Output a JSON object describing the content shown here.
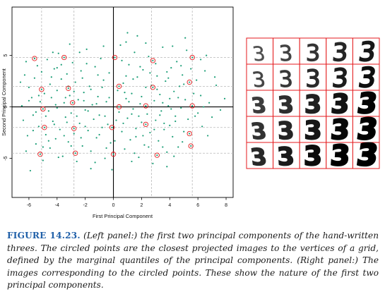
{
  "figure": {
    "label": "FIGURE 14.23.",
    "caption": "(Left panel:) the first two principal components of the hand-written threes. The circled points are the closest projected images to the vertices of a grid, defined by the marginal quantiles of the principal components. (Right panel:) The images corresponding to the circled points. These show the nature of the first two principal components."
  },
  "right_panel": {
    "digit": "3",
    "rows": 5,
    "cols": 5,
    "border_color": "#e41a1c"
  },
  "chart_data": {
    "type": "scatter",
    "xlabel": "First Principal Component",
    "ylabel": "Second Principal Component",
    "xlim": [
      -7.2,
      8.5
    ],
    "ylim": [
      -8.8,
      9.7
    ],
    "xticks": [
      -6,
      -4,
      -2,
      0,
      2,
      4,
      6,
      8
    ],
    "yticks": [
      -5,
      0,
      5
    ],
    "point_color": "#1b9e77",
    "circle_color": "#e41a1c",
    "grid_x": [
      -5.1,
      -2.8,
      0.0,
      2.7,
      5.6
    ],
    "grid_y": [
      -4.5,
      -2.0,
      0.0,
      2.0,
      4.8
    ],
    "circled_points": [
      {
        "x": -5.6,
        "y": 4.7
      },
      {
        "x": -3.5,
        "y": 4.8
      },
      {
        "x": 0.1,
        "y": 4.8
      },
      {
        "x": 2.8,
        "y": 4.5
      },
      {
        "x": 5.6,
        "y": 4.8
      },
      {
        "x": -5.1,
        "y": 1.7
      },
      {
        "x": -3.2,
        "y": 1.8
      },
      {
        "x": 0.4,
        "y": 2.0
      },
      {
        "x": 2.8,
        "y": 1.9
      },
      {
        "x": 5.4,
        "y": 2.4
      },
      {
        "x": -5.0,
        "y": -0.2
      },
      {
        "x": -2.9,
        "y": 0.4
      },
      {
        "x": 0.4,
        "y": 0.0
      },
      {
        "x": 2.3,
        "y": 0.1
      },
      {
        "x": 5.6,
        "y": 0.1
      },
      {
        "x": -4.9,
        "y": -2.0
      },
      {
        "x": -2.8,
        "y": -2.1
      },
      {
        "x": -0.1,
        "y": -2.0
      },
      {
        "x": 2.3,
        "y": -1.7
      },
      {
        "x": 5.4,
        "y": -2.6
      },
      {
        "x": -5.2,
        "y": -4.6
      },
      {
        "x": -2.7,
        "y": -4.5
      },
      {
        "x": 0.0,
        "y": -4.6
      },
      {
        "x": 3.1,
        "y": -4.7
      },
      {
        "x": 5.5,
        "y": -3.8
      }
    ],
    "points": [
      {
        "x": -6.5,
        "y": 0.1
      },
      {
        "x": -6.4,
        "y": -1.3
      },
      {
        "x": -6.0,
        "y": 1.9
      },
      {
        "x": -6.1,
        "y": -2.8
      },
      {
        "x": -6.3,
        "y": 3.1
      },
      {
        "x": -5.9,
        "y": -6.2
      },
      {
        "x": -5.8,
        "y": 0.9
      },
      {
        "x": -5.7,
        "y": -0.8
      },
      {
        "x": -5.6,
        "y": 2.8
      },
      {
        "x": -5.5,
        "y": -3.6
      },
      {
        "x": -5.4,
        "y": 4.0
      },
      {
        "x": -5.3,
        "y": -1.9
      },
      {
        "x": -5.2,
        "y": 0.5
      },
      {
        "x": -5.1,
        "y": 3.4
      },
      {
        "x": -5.0,
        "y": -5.2
      },
      {
        "x": -4.9,
        "y": 1.3
      },
      {
        "x": -4.8,
        "y": -2.7
      },
      {
        "x": -4.7,
        "y": 4.6
      },
      {
        "x": -4.6,
        "y": -0.4
      },
      {
        "x": -4.5,
        "y": 2.2
      },
      {
        "x": -4.5,
        "y": -4.0
      },
      {
        "x": -4.4,
        "y": 0.9
      },
      {
        "x": -4.3,
        "y": -1.4
      },
      {
        "x": -4.2,
        "y": 3.7
      },
      {
        "x": -4.1,
        "y": -3.1
      },
      {
        "x": -4.0,
        "y": 1.6
      },
      {
        "x": -4.0,
        "y": -0.1
      },
      {
        "x": -3.9,
        "y": 5.2
      },
      {
        "x": -3.8,
        "y": -2.2
      },
      {
        "x": -3.7,
        "y": 2.7
      },
      {
        "x": -3.6,
        "y": -4.8
      },
      {
        "x": -3.5,
        "y": 0.4
      },
      {
        "x": -3.4,
        "y": -1.0
      },
      {
        "x": -3.3,
        "y": 3.2
      },
      {
        "x": -3.2,
        "y": -3.4
      },
      {
        "x": -3.1,
        "y": 1.1
      },
      {
        "x": -3.0,
        "y": -0.6
      },
      {
        "x": -2.9,
        "y": 4.3
      },
      {
        "x": -2.8,
        "y": -2.6
      },
      {
        "x": -2.7,
        "y": 2.4
      },
      {
        "x": -2.6,
        "y": -5.3
      },
      {
        "x": -2.5,
        "y": 0.7
      },
      {
        "x": -2.4,
        "y": -1.6
      },
      {
        "x": -2.3,
        "y": 3.5
      },
      {
        "x": -2.2,
        "y": -3.8
      },
      {
        "x": -2.1,
        "y": 1.4
      },
      {
        "x": -2.0,
        "y": -0.3
      },
      {
        "x": -1.9,
        "y": 5.6
      },
      {
        "x": -1.8,
        "y": -2.3
      },
      {
        "x": -1.7,
        "y": 2.0
      },
      {
        "x": -1.6,
        "y": -4.3
      },
      {
        "x": -1.5,
        "y": 0.2
      },
      {
        "x": -1.4,
        "y": -1.2
      },
      {
        "x": -1.3,
        "y": 3.9
      },
      {
        "x": -1.2,
        "y": -3.0
      },
      {
        "x": -1.1,
        "y": 1.0
      },
      {
        "x": -1.0,
        "y": -0.8
      },
      {
        "x": -0.9,
        "y": 4.7
      },
      {
        "x": -0.8,
        "y": -2.0
      },
      {
        "x": -0.7,
        "y": 2.6
      },
      {
        "x": -0.6,
        "y": -5.0
      },
      {
        "x": -0.5,
        "y": 0.5
      },
      {
        "x": -0.4,
        "y": -1.7
      },
      {
        "x": -0.3,
        "y": 3.3
      },
      {
        "x": -0.2,
        "y": -3.5
      },
      {
        "x": 0.3,
        "y": 1.6
      },
      {
        "x": 0.4,
        "y": -0.5
      },
      {
        "x": 0.5,
        "y": 6.0
      },
      {
        "x": 0.6,
        "y": -2.4
      },
      {
        "x": 0.7,
        "y": 2.3
      },
      {
        "x": 0.8,
        "y": -4.1
      },
      {
        "x": 0.9,
        "y": 0.8
      },
      {
        "x": 1.0,
        "y": -1.1
      },
      {
        "x": 1.1,
        "y": 4.1
      },
      {
        "x": 1.2,
        "y": -3.2
      },
      {
        "x": 1.3,
        "y": 1.3
      },
      {
        "x": 1.4,
        "y": -0.2
      },
      {
        "x": 1.5,
        "y": 5.3
      },
      {
        "x": 1.6,
        "y": -2.1
      },
      {
        "x": 1.7,
        "y": 2.9
      },
      {
        "x": 1.8,
        "y": -4.9
      },
      {
        "x": 1.9,
        "y": 0.3
      },
      {
        "x": 2.0,
        "y": -1.5
      },
      {
        "x": 2.1,
        "y": 3.6
      },
      {
        "x": 2.2,
        "y": -3.7
      },
      {
        "x": 2.3,
        "y": 1.9
      },
      {
        "x": 2.4,
        "y": -0.7
      },
      {
        "x": 2.5,
        "y": 4.9
      },
      {
        "x": 2.6,
        "y": -2.5
      },
      {
        "x": 2.7,
        "y": 2.1
      },
      {
        "x": 2.8,
        "y": -5.5
      },
      {
        "x": 2.9,
        "y": 0.6
      },
      {
        "x": 3.0,
        "y": -1.3
      },
      {
        "x": 3.1,
        "y": 3.0
      },
      {
        "x": 3.2,
        "y": -3.3
      },
      {
        "x": 3.3,
        "y": 1.2
      },
      {
        "x": 3.4,
        "y": -0.4
      },
      {
        "x": 3.5,
        "y": 5.8
      },
      {
        "x": 3.6,
        "y": -2.2
      },
      {
        "x": 3.7,
        "y": 2.5
      },
      {
        "x": 3.8,
        "y": -4.4
      },
      {
        "x": 3.9,
        "y": 0.1
      },
      {
        "x": 4.0,
        "y": -1.8
      },
      {
        "x": 4.1,
        "y": 3.8
      },
      {
        "x": 4.2,
        "y": -2.9
      },
      {
        "x": 4.3,
        "y": 1.5
      },
      {
        "x": 4.4,
        "y": -0.9
      },
      {
        "x": 4.5,
        "y": 4.4
      },
      {
        "x": 4.6,
        "y": -3.9
      },
      {
        "x": 4.7,
        "y": 2.0
      },
      {
        "x": 4.8,
        "y": -0.1
      },
      {
        "x": 4.9,
        "y": 3.1
      },
      {
        "x": 5.0,
        "y": -2.4
      },
      {
        "x": 5.1,
        "y": 0.7
      },
      {
        "x": 5.2,
        "y": 5.5
      },
      {
        "x": 5.3,
        "y": -1.2
      },
      {
        "x": 5.9,
        "y": 2.6
      },
      {
        "x": 6.0,
        "y": -0.6
      },
      {
        "x": 6.2,
        "y": 1.1
      },
      {
        "x": 6.3,
        "y": -1.9
      },
      {
        "x": 6.5,
        "y": 3.5
      },
      {
        "x": 6.8,
        "y": 0.4
      },
      {
        "x": 7.0,
        "y": -1.0
      },
      {
        "x": 7.3,
        "y": 2.1
      },
      {
        "x": 7.9,
        "y": 0.8
      },
      {
        "x": -3.9,
        "y": -4.9
      },
      {
        "x": -1.3,
        "y": -5.4
      },
      {
        "x": 1.3,
        "y": -5.3
      },
      {
        "x": 3.8,
        "y": -5.8
      },
      {
        "x": 0.9,
        "y": 6.3
      },
      {
        "x": -0.7,
        "y": 5.9
      },
      {
        "x": 2.3,
        "y": 6.2
      },
      {
        "x": -2.4,
        "y": 5.3
      },
      {
        "x": 4.2,
        "y": 5.9
      },
      {
        "x": 6.2,
        "y": 4.6
      },
      {
        "x": -6.2,
        "y": -4.3
      },
      {
        "x": -6.6,
        "y": 2.4
      },
      {
        "x": 7.6,
        "y": -0.3
      },
      {
        "x": 7.2,
        "y": 2.9
      },
      {
        "x": 6.7,
        "y": -2.8
      },
      {
        "x": -4.4,
        "y": 2.9
      },
      {
        "x": -2.2,
        "y": 2.8
      },
      {
        "x": 1.4,
        "y": 2.7
      },
      {
        "x": 3.8,
        "y": 3.4
      },
      {
        "x": 5.0,
        "y": 2.2
      },
      {
        "x": -4.8,
        "y": -0.9
      },
      {
        "x": -2.6,
        "y": -0.9
      },
      {
        "x": -0.3,
        "y": 0.9
      },
      {
        "x": 1.8,
        "y": -0.9
      },
      {
        "x": 4.0,
        "y": 0.8
      },
      {
        "x": -3.5,
        "y": -2.8
      },
      {
        "x": -1.0,
        "y": -2.7
      },
      {
        "x": 1.6,
        "y": -2.9
      },
      {
        "x": 3.6,
        "y": -1.6
      },
      {
        "x": 5.8,
        "y": -0.9
      },
      {
        "x": -5.3,
        "y": 1.1
      },
      {
        "x": -3.2,
        "y": 2.0
      },
      {
        "x": -1.6,
        "y": 1.7
      },
      {
        "x": 0.9,
        "y": 3.0
      },
      {
        "x": 2.6,
        "y": 3.3
      },
      {
        "x": -4.2,
        "y": -1.7
      },
      {
        "x": -2.0,
        "y": -1.9
      },
      {
        "x": 0.2,
        "y": -1.3
      },
      {
        "x": 2.1,
        "y": -2.8
      },
      {
        "x": 4.4,
        "y": -1.4
      },
      {
        "x": -5.7,
        "y": -2.3
      },
      {
        "x": -3.4,
        "y": 0.9
      },
      {
        "x": -1.2,
        "y": 0.3
      },
      {
        "x": 1.1,
        "y": 0.5
      },
      {
        "x": 3.3,
        "y": -0.8
      },
      {
        "x": -4.0,
        "y": 3.8
      },
      {
        "x": -1.9,
        "y": 4.2
      },
      {
        "x": 0.6,
        "y": 4.5
      },
      {
        "x": 3.0,
        "y": 4.2
      },
      {
        "x": 4.8,
        "y": 4.0
      },
      {
        "x": -4.6,
        "y": -3.3
      },
      {
        "x": -2.3,
        "y": -3.0
      },
      {
        "x": 0.1,
        "y": -3.3
      },
      {
        "x": 2.5,
        "y": -3.9
      },
      {
        "x": 4.9,
        "y": -3.4
      },
      {
        "x": -6.0,
        "y": 0.6
      },
      {
        "x": -5.5,
        "y": -0.5
      },
      {
        "x": -4.1,
        "y": 0.2
      },
      {
        "x": -2.8,
        "y": 1.5
      },
      {
        "x": -0.8,
        "y": 1.9
      },
      {
        "x": 0.7,
        "y": -1.6
      },
      {
        "x": 2.0,
        "y": 1.0
      },
      {
        "x": 3.5,
        "y": 0.4
      },
      {
        "x": 4.6,
        "y": 0.9
      },
      {
        "x": 6.4,
        "y": 0.0
      },
      {
        "x": -3.7,
        "y": 4.1
      },
      {
        "x": -1.1,
        "y": 3.1
      },
      {
        "x": 1.9,
        "y": 3.9
      },
      {
        "x": 3.9,
        "y": 2.8
      },
      {
        "x": 5.5,
        "y": 3.7
      },
      {
        "x": -5.0,
        "y": -3.9
      },
      {
        "x": -3.0,
        "y": -3.8
      },
      {
        "x": -0.5,
        "y": -4.0
      },
      {
        "x": 1.5,
        "y": -4.5
      },
      {
        "x": 3.5,
        "y": -3.9
      },
      {
        "x": -1.8,
        "y": -0.4
      },
      {
        "x": -0.6,
        "y": -0.9
      },
      {
        "x": 0.8,
        "y": 1.4
      },
      {
        "x": 2.9,
        "y": -2.2
      },
      {
        "x": 4.1,
        "y": -0.2
      },
      {
        "x": -3.3,
        "y": -1.5
      },
      {
        "x": -2.1,
        "y": 0.6
      },
      {
        "x": 1.3,
        "y": -0.7
      },
      {
        "x": 3.1,
        "y": 1.7
      },
      {
        "x": 5.7,
        "y": 1.3
      },
      {
        "x": -4.3,
        "y": 5.3
      },
      {
        "x": 4.3,
        "y": -4.8
      },
      {
        "x": -6.2,
        "y": 4.4
      },
      {
        "x": 6.6,
        "y": 5.0
      },
      {
        "x": -0.1,
        "y": -6.1
      },
      {
        "x": 1.0,
        "y": 7.2
      },
      {
        "x": 1.7,
        "y": 6.9
      },
      {
        "x": -3.1,
        "y": 6.1
      },
      {
        "x": 5.1,
        "y": 6.7
      },
      {
        "x": -1.6,
        "y": -6.0
      }
    ]
  }
}
